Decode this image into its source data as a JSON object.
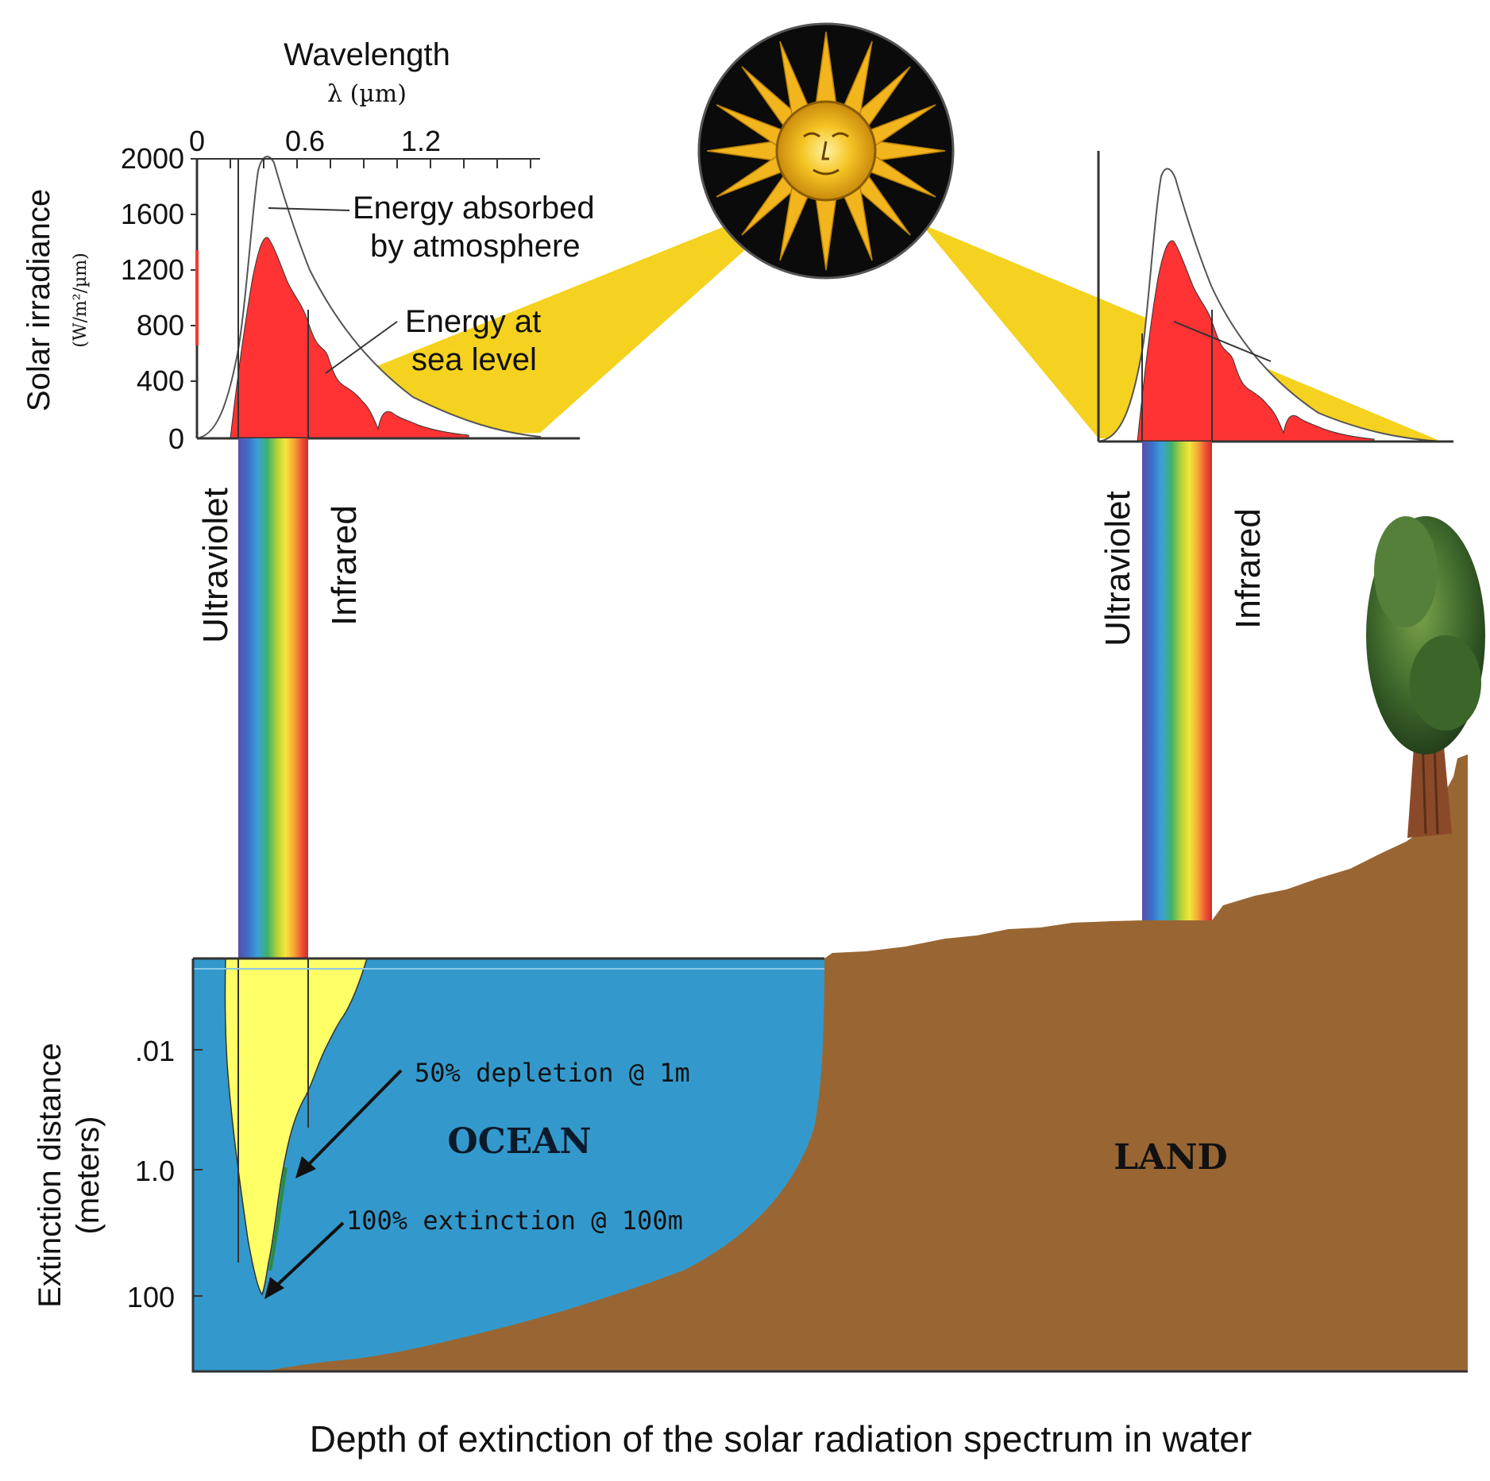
{
  "spectrum_chart": {
    "top_axis_title": "Wavelength",
    "top_axis_unit": "λ (µm)",
    "x_ticks": [
      "0",
      "0.6",
      "1.2"
    ],
    "y_axis_title": "Solar irradiance",
    "y_axis_unit": "(W/m²/µm)",
    "y_ticks": [
      "2000",
      "1600",
      "1200",
      "800",
      "400",
      "0"
    ],
    "label_absorbed_line1": "Energy absorbed",
    "label_absorbed_line2": "by atmosphere",
    "label_sealevel_line1": "Energy at",
    "label_sealevel_line2": "sea level"
  },
  "band_labels": {
    "ultraviolet": "Ultraviolet",
    "infrared": "Infrared"
  },
  "depth_chart": {
    "y_axis_title_line1": "Extinction distance",
    "y_axis_title_line2": "(meters)",
    "y_ticks": [
      ".01",
      "1.0",
      "100"
    ],
    "annotation_50": "50% depletion @ 1m",
    "annotation_100": "100% extinction @ 100m",
    "ocean_label": "OCEAN",
    "land_label": "LAND"
  },
  "caption": "Depth of extinction of the solar radiation spectrum in water",
  "colors": {
    "ocean": "#3399cc",
    "land": "#996633",
    "sea_level_energy": "#ff3333",
    "atmosphere_beam": "#f5d21f",
    "water_penetration": "#ffff66"
  }
}
